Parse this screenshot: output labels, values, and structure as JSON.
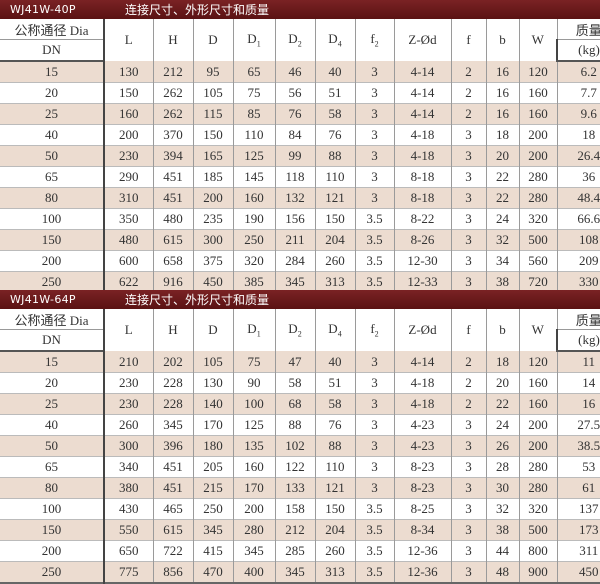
{
  "columns": [
    "L",
    "H",
    "D",
    "D",
    "D",
    "D",
    "f",
    "Z-Ød",
    "f",
    "b",
    "W"
  ],
  "subs": [
    "",
    "",
    "",
    "1",
    "2",
    "4",
    "2",
    "",
    "",
    "",
    ""
  ],
  "dn_header": "公称通径 Dia",
  "dn_sub": "DN",
  "mass_header": "质量",
  "mass_unit": "(kg)",
  "tables": [
    {
      "model": "WJ41W-40P",
      "desc": "连接尺寸、外形尺寸和质量",
      "rows": [
        [
          "15",
          "130",
          "212",
          "95",
          "65",
          "46",
          "40",
          "3",
          "4-14",
          "2",
          "16",
          "120",
          "6.2"
        ],
        [
          "20",
          "150",
          "262",
          "105",
          "75",
          "56",
          "51",
          "3",
          "4-14",
          "2",
          "16",
          "160",
          "7.7"
        ],
        [
          "25",
          "160",
          "262",
          "115",
          "85",
          "76",
          "58",
          "3",
          "4-14",
          "2",
          "16",
          "160",
          "9.6"
        ],
        [
          "40",
          "200",
          "370",
          "150",
          "110",
          "84",
          "76",
          "3",
          "4-18",
          "3",
          "18",
          "200",
          "18"
        ],
        [
          "50",
          "230",
          "394",
          "165",
          "125",
          "99",
          "88",
          "3",
          "4-18",
          "3",
          "20",
          "200",
          "26.4"
        ],
        [
          "65",
          "290",
          "451",
          "185",
          "145",
          "118",
          "110",
          "3",
          "8-18",
          "3",
          "22",
          "280",
          "36"
        ],
        [
          "80",
          "310",
          "451",
          "200",
          "160",
          "132",
          "121",
          "3",
          "8-18",
          "3",
          "22",
          "280",
          "48.4"
        ],
        [
          "100",
          "350",
          "480",
          "235",
          "190",
          "156",
          "150",
          "3.5",
          "8-22",
          "3",
          "24",
          "320",
          "66.6"
        ],
        [
          "150",
          "480",
          "615",
          "300",
          "250",
          "211",
          "204",
          "3.5",
          "8-26",
          "3",
          "32",
          "500",
          "108"
        ],
        [
          "200",
          "600",
          "658",
          "375",
          "320",
          "284",
          "260",
          "3.5",
          "12-30",
          "3",
          "34",
          "560",
          "209"
        ],
        [
          "250",
          "622",
          "916",
          "450",
          "385",
          "345",
          "313",
          "3.5",
          "12-33",
          "3",
          "38",
          "720",
          "330"
        ]
      ]
    },
    {
      "model": "WJ41W-64P",
      "desc": "连接尺寸、外形尺寸和质量",
      "rows": [
        [
          "15",
          "210",
          "202",
          "105",
          "75",
          "47",
          "40",
          "3",
          "4-14",
          "2",
          "18",
          "120",
          "11"
        ],
        [
          "20",
          "230",
          "228",
          "130",
          "90",
          "58",
          "51",
          "3",
          "4-18",
          "2",
          "20",
          "160",
          "14"
        ],
        [
          "25",
          "230",
          "228",
          "140",
          "100",
          "68",
          "58",
          "3",
          "4-18",
          "2",
          "22",
          "160",
          "16"
        ],
        [
          "40",
          "260",
          "345",
          "170",
          "125",
          "88",
          "76",
          "3",
          "4-23",
          "3",
          "24",
          "200",
          "27.5"
        ],
        [
          "50",
          "300",
          "396",
          "180",
          "135",
          "102",
          "88",
          "3",
          "4-23",
          "3",
          "26",
          "200",
          "38.5"
        ],
        [
          "65",
          "340",
          "451",
          "205",
          "160",
          "122",
          "110",
          "3",
          "8-23",
          "3",
          "28",
          "280",
          "53"
        ],
        [
          "80",
          "380",
          "451",
          "215",
          "170",
          "133",
          "121",
          "3",
          "8-23",
          "3",
          "30",
          "280",
          "61"
        ],
        [
          "100",
          "430",
          "465",
          "250",
          "200",
          "158",
          "150",
          "3.5",
          "8-25",
          "3",
          "32",
          "320",
          "137"
        ],
        [
          "150",
          "550",
          "615",
          "345",
          "280",
          "212",
          "204",
          "3.5",
          "8-34",
          "3",
          "38",
          "500",
          "173"
        ],
        [
          "200",
          "650",
          "722",
          "415",
          "345",
          "285",
          "260",
          "3.5",
          "12-36",
          "3",
          "44",
          "800",
          "311"
        ],
        [
          "250",
          "775",
          "856",
          "470",
          "400",
          "345",
          "313",
          "3.5",
          "12-36",
          "3",
          "48",
          "900",
          "450"
        ]
      ]
    }
  ]
}
